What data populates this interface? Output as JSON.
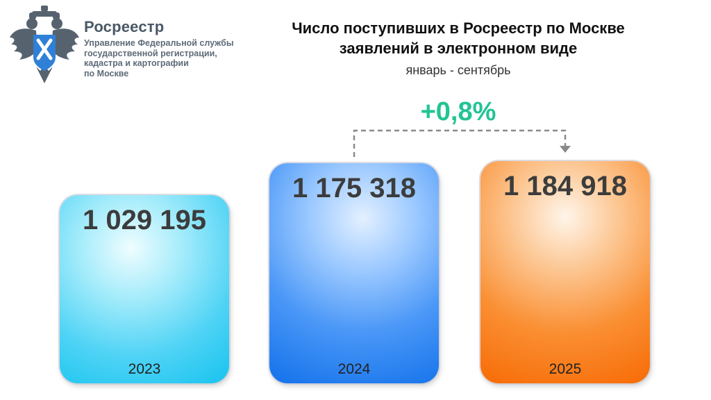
{
  "header": {
    "org_name": "Росреестр",
    "org_sub": [
      "Управление Федеральной службы",
      "государственной регистрации,",
      "кадастра и картографии",
      "по Москве"
    ],
    "title_lines": [
      "Число поступивших в Росреестр по Москве",
      "заявлений в электронном виде"
    ],
    "subtitle": "январь - сентябрь",
    "change_label": "+0,8%",
    "colors": {
      "change": "#22c493",
      "title": "#111111",
      "org": "#4a5866"
    }
  },
  "logo": {
    "icon": "double-headed-eagle-emblem-icon"
  },
  "chart_data": {
    "type": "bar",
    "title": "Число поступивших в Росреестр по Москве заявлений в электронном виде",
    "subtitle": "январь - сентябрь",
    "categories": [
      "2023",
      "2024",
      "2025"
    ],
    "values": [
      1029195,
      1175318,
      1184918
    ],
    "value_labels": [
      "1 029 195",
      "1 175 318",
      "1 184 918"
    ],
    "bar_colors": [
      "#17c3ef",
      "#1271ea",
      "#f76b05"
    ],
    "annotation": {
      "text": "+0,8%",
      "from": "2024",
      "to": "2025"
    },
    "grid": false,
    "legend": "none"
  }
}
